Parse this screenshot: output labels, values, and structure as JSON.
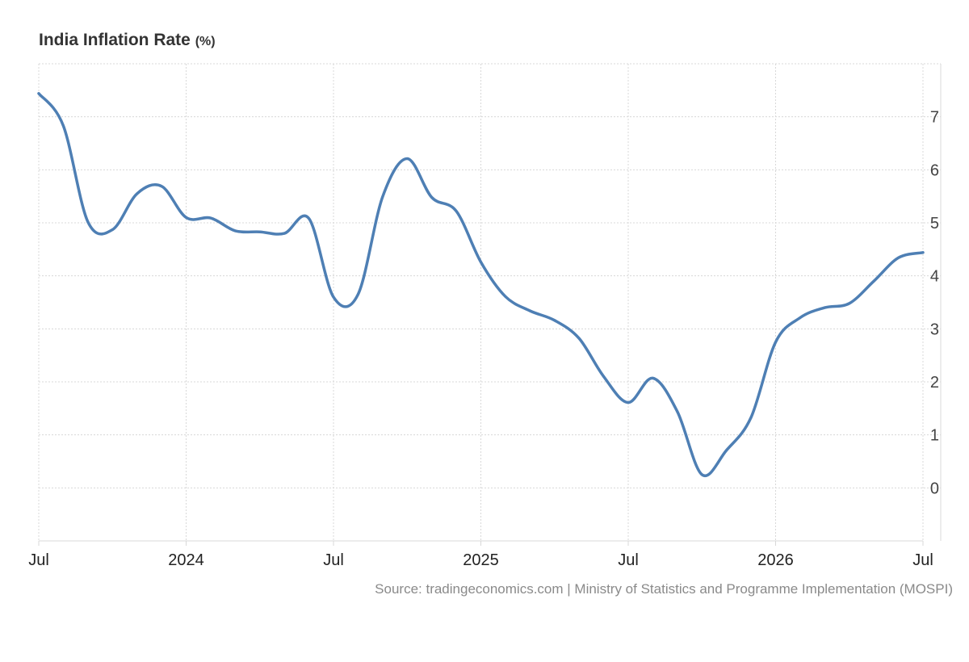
{
  "chart_data": {
    "type": "line",
    "title": "India Inflation Rate",
    "unit": "(%)",
    "source": "Source: tradingeconomics.com | Ministry of Statistics and Programme Implementation (MOSPI)",
    "ylim": [
      -1,
      8
    ],
    "yticks": [
      0,
      1,
      2,
      3,
      4,
      5,
      6,
      7
    ],
    "y_axis_side": "right",
    "grid": true,
    "xticks": [
      {
        "x": "2023-07",
        "label": "Jul"
      },
      {
        "x": "2024-01",
        "label": "2024"
      },
      {
        "x": "2024-07",
        "label": "Jul"
      },
      {
        "x": "2025-01",
        "label": "2025"
      },
      {
        "x": "2025-07",
        "label": "Jul"
      },
      {
        "x": "2026-01",
        "label": "2026"
      },
      {
        "x": "2026-07",
        "label": "Jul"
      }
    ],
    "series": [
      {
        "color": "#4e7fb4",
        "x": [
          "2023-07",
          "2023-08",
          "2023-09",
          "2023-10",
          "2023-11",
          "2023-12",
          "2024-01",
          "2024-02",
          "2024-03",
          "2024-04",
          "2024-05",
          "2024-06",
          "2024-07",
          "2024-08",
          "2024-09",
          "2024-10",
          "2024-11",
          "2024-12",
          "2025-01",
          "2025-02",
          "2025-03",
          "2025-04",
          "2025-05",
          "2025-06",
          "2025-07",
          "2025-08",
          "2025-09",
          "2025-10",
          "2025-11",
          "2025-12",
          "2026-01",
          "2026-02",
          "2026-03",
          "2026-04",
          "2026-05",
          "2026-06",
          "2026-07"
        ],
        "values": [
          7.44,
          6.83,
          5.02,
          4.87,
          5.55,
          5.69,
          5.1,
          5.09,
          4.85,
          4.83,
          4.8,
          5.08,
          3.6,
          3.65,
          5.49,
          6.21,
          5.48,
          5.22,
          4.26,
          3.61,
          3.34,
          3.16,
          2.82,
          2.1,
          1.61,
          2.07,
          1.44,
          0.25,
          0.71,
          1.33,
          2.75,
          3.21,
          3.4,
          3.48,
          3.9,
          4.34,
          4.44
        ]
      }
    ]
  }
}
